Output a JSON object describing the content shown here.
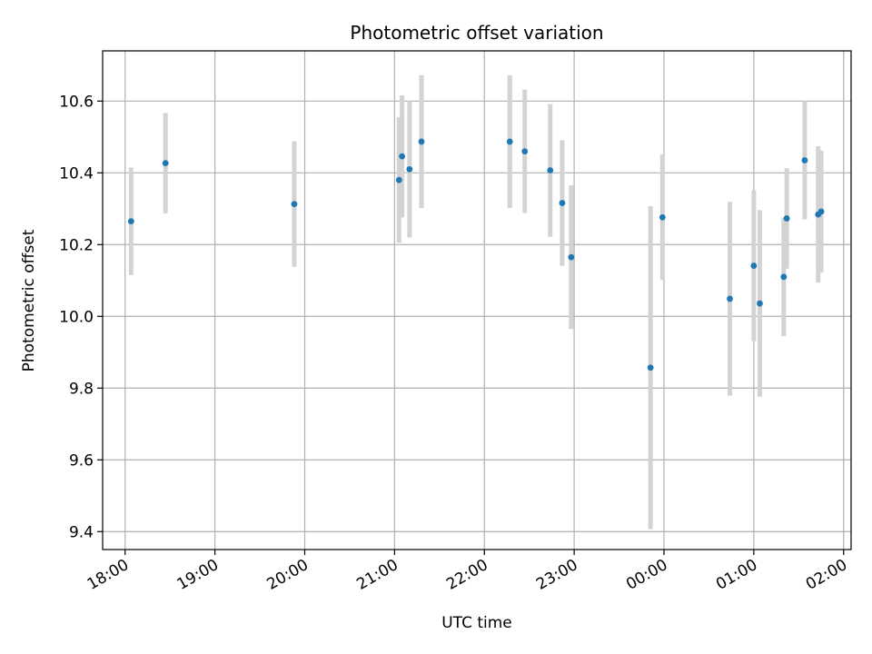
{
  "chart_data": {
    "type": "scatter",
    "title": "Photometric offset variation",
    "xlabel": "UTC time",
    "ylabel": "Photometric offset",
    "x_unit": "UTC time (HH:MM), points cross midnight",
    "x_range": [
      "17:45",
      "02:05"
    ],
    "ylim": [
      9.35,
      10.74
    ],
    "x_ticks": [
      "18:00",
      "19:00",
      "20:00",
      "21:00",
      "22:00",
      "23:00",
      "00:00",
      "01:00",
      "02:00"
    ],
    "y_ticks": [
      "9.4",
      "9.6",
      "9.8",
      "10.0",
      "10.2",
      "10.4",
      "10.6"
    ],
    "grid": true,
    "point_color": "#1f77b4",
    "errorbar_color": "#d3d3d3",
    "points": [
      {
        "x": "18:04",
        "y": 10.265,
        "err": 0.15
      },
      {
        "x": "18:27",
        "y": 10.427,
        "err": 0.14
      },
      {
        "x": "19:53",
        "y": 10.313,
        "err": 0.175
      },
      {
        "x": "21:03",
        "y": 10.38,
        "err": 0.175
      },
      {
        "x": "21:05",
        "y": 10.446,
        "err": 0.17
      },
      {
        "x": "21:10",
        "y": 10.41,
        "err": 0.19
      },
      {
        "x": "21:18",
        "y": 10.487,
        "err": 0.185
      },
      {
        "x": "22:17",
        "y": 10.487,
        "err": 0.185
      },
      {
        "x": "22:27",
        "y": 10.46,
        "err": 0.172
      },
      {
        "x": "22:44",
        "y": 10.407,
        "err": 0.185
      },
      {
        "x": "22:52",
        "y": 10.316,
        "err": 0.175
      },
      {
        "x": "22:58",
        "y": 10.165,
        "err": 0.2
      },
      {
        "x": "23:51",
        "y": 9.857,
        "err": 0.45
      },
      {
        "x": "23:59",
        "y": 10.276,
        "err": 0.175
      },
      {
        "x": "00:44",
        "y": 10.049,
        "err": 0.27
      },
      {
        "x": "01:00",
        "y": 10.141,
        "err": 0.21
      },
      {
        "x": "01:04",
        "y": 10.036,
        "err": 0.26
      },
      {
        "x": "01:20",
        "y": 10.11,
        "err": 0.165
      },
      {
        "x": "01:22",
        "y": 10.273,
        "err": 0.14
      },
      {
        "x": "01:34",
        "y": 10.435,
        "err": 0.165
      },
      {
        "x": "01:43",
        "y": 10.284,
        "err": 0.19
      },
      {
        "x": "01:45",
        "y": 10.292,
        "err": 0.17
      }
    ]
  }
}
